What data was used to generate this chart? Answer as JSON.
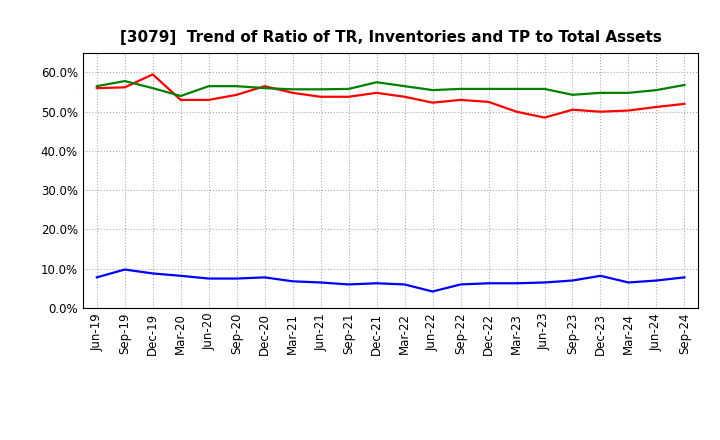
{
  "title": "[3079]  Trend of Ratio of TR, Inventories and TP to Total Assets",
  "x_labels": [
    "Jun-19",
    "Sep-19",
    "Dec-19",
    "Mar-20",
    "Jun-20",
    "Sep-20",
    "Dec-20",
    "Mar-21",
    "Jun-21",
    "Sep-21",
    "Dec-21",
    "Mar-22",
    "Jun-22",
    "Sep-22",
    "Dec-22",
    "Mar-23",
    "Jun-23",
    "Sep-23",
    "Dec-23",
    "Mar-24",
    "Jun-24",
    "Sep-24"
  ],
  "trade_receivables": [
    0.56,
    0.562,
    0.595,
    0.53,
    0.53,
    0.543,
    0.565,
    0.548,
    0.538,
    0.538,
    0.548,
    0.538,
    0.523,
    0.53,
    0.525,
    0.5,
    0.485,
    0.505,
    0.5,
    0.503,
    0.512,
    0.52
  ],
  "inventories": [
    0.078,
    0.098,
    0.088,
    0.082,
    0.075,
    0.075,
    0.078,
    0.068,
    0.065,
    0.06,
    0.063,
    0.06,
    0.042,
    0.06,
    0.063,
    0.063,
    0.065,
    0.07,
    0.082,
    0.065,
    0.07,
    0.078
  ],
  "trade_payables": [
    0.565,
    0.578,
    0.56,
    0.54,
    0.565,
    0.565,
    0.56,
    0.557,
    0.557,
    0.558,
    0.575,
    0.565,
    0.555,
    0.558,
    0.558,
    0.558,
    0.558,
    0.543,
    0.548,
    0.548,
    0.555,
    0.568
  ],
  "color_tr": "#ff0000",
  "color_inv": "#0000ff",
  "color_tp": "#008000",
  "ylim": [
    0.0,
    0.65
  ],
  "yticks": [
    0.0,
    0.1,
    0.2,
    0.3,
    0.4,
    0.5,
    0.6
  ],
  "background_color": "#ffffff",
  "grid_color": "#aaaaaa",
  "title_fontsize": 11,
  "tick_fontsize": 8.5,
  "legend_fontsize": 9,
  "linewidth": 1.6
}
